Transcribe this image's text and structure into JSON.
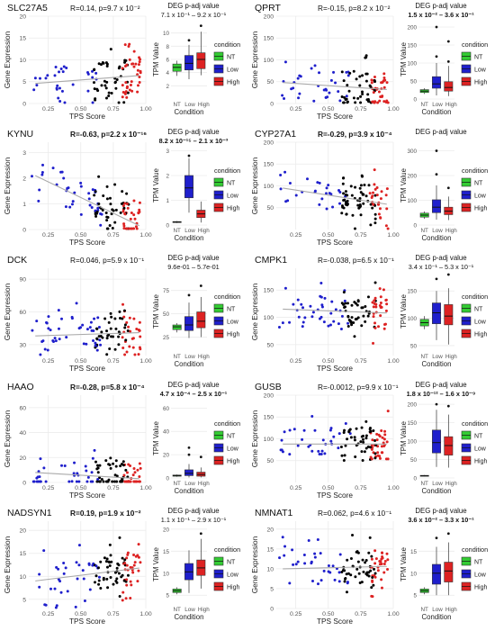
{
  "labels": {
    "scatter_xlabel": "TPS Score",
    "scatter_ylabel": "Gene Expression",
    "box_ylabel": "TPM Value",
    "box_xlabel": "Condition",
    "box_title": "DEG p-adj value",
    "legend_title": "condition"
  },
  "conditions": [
    {
      "name": "NT",
      "color": "#33cc33"
    },
    {
      "name": "Low",
      "color": "#1f1fcc"
    },
    {
      "name": "High",
      "color": "#dd2222"
    }
  ],
  "box_xticks": [
    "NT",
    "Low",
    "High"
  ],
  "scatter_xticks": [
    0.25,
    0.5,
    0.75,
    1.0
  ],
  "scatter_xtick_labels": [
    "0.25",
    "0.50",
    "0.75",
    "1.00"
  ],
  "colors": {
    "mid_points": "#000000",
    "trend": "#aaaaaa",
    "grid": "#ebebeb"
  },
  "chart_data": [
    {
      "gene": "SLC27A5",
      "stats": "R=0.14, p=9.7 x 10⁻²",
      "stats_bold": false,
      "padj": "7.1 x 10⁻¹ – 9.2 x 10⁻¹",
      "padj_bold": false,
      "scatter": {
        "type": "scatter",
        "xlim": [
          0.1,
          1.0
        ],
        "ylim": [
          0,
          20
        ],
        "yticks": [
          0,
          5,
          10,
          15,
          20
        ],
        "trend": [
          4.6,
          6.4
        ]
      },
      "box": {
        "type": "box",
        "ylim": [
          0,
          12
        ],
        "yticks": [
          2,
          4,
          6,
          8,
          10
        ],
        "groups": [
          {
            "name": "NT",
            "q1": 4.2,
            "median": 4.8,
            "q3": 5.3,
            "low": 3.5,
            "high": 5.8
          },
          {
            "name": "Low",
            "q1": 4.4,
            "median": 5.4,
            "q3": 6.6,
            "low": 3.0,
            "high": 8.2,
            "outliers": [
              8.9
            ]
          },
          {
            "name": "High",
            "q1": 4.6,
            "median": 6.0,
            "q3": 7.0,
            "low": 3.6,
            "high": 10.2,
            "outliers": [
              11.1
            ]
          }
        ]
      }
    },
    {
      "gene": "QPRT",
      "stats": "R=-0.15, p=8.2 x 10⁻²",
      "stats_bold": false,
      "padj": "1.5 x 10⁻² – 3.6 x 10⁻¹",
      "padj_bold": true,
      "scatter": {
        "type": "scatter",
        "xlim": [
          0.1,
          1.0
        ],
        "ylim": [
          0,
          200
        ],
        "yticks": [
          0,
          50,
          100,
          150,
          200
        ],
        "trend": [
          48,
          32
        ]
      },
      "box": {
        "type": "box",
        "ylim": [
          0,
          220
        ],
        "yticks": [
          0,
          50,
          100,
          150,
          200
        ],
        "groups": [
          {
            "name": "NT",
            "q1": 18,
            "median": 22,
            "q3": 26,
            "low": 14,
            "high": 30
          },
          {
            "name": "Low",
            "q1": 30,
            "median": 42,
            "q3": 62,
            "low": 10,
            "high": 100,
            "outliers": [
              118,
              200
            ]
          },
          {
            "name": "High",
            "q1": 22,
            "median": 32,
            "q3": 48,
            "low": 8,
            "high": 92,
            "outliers": [
              104,
              160
            ]
          }
        ]
      }
    },
    {
      "gene": "KYNU",
      "stats": "R=-0.63, p=2.2 x 10⁻¹⁶",
      "stats_bold": true,
      "padj": "8.2 x 10⁻¹⁵ – 2.1 x 10⁻³",
      "padj_bold": true,
      "scatter": {
        "type": "scatter",
        "xlim": [
          0.1,
          1.0
        ],
        "ylim": [
          0,
          3.4
        ],
        "yticks": [
          0,
          1,
          2,
          3
        ],
        "trend": [
          2.1,
          0.15
        ]
      },
      "box": {
        "type": "box",
        "ylim": [
          0,
          3.2
        ],
        "yticks": [
          0,
          1,
          2,
          3
        ],
        "groups": [
          {
            "name": "NT",
            "q1": 0.1,
            "median": 0.12,
            "q3": 0.14,
            "low": 0.08,
            "high": 0.16
          },
          {
            "name": "Low",
            "q1": 1.1,
            "median": 1.5,
            "q3": 2.0,
            "low": 0.5,
            "high": 2.7,
            "outliers": [
              2.8
            ]
          },
          {
            "name": "High",
            "q1": 0.3,
            "median": 0.45,
            "q3": 0.6,
            "low": 0.1,
            "high": 0.95
          }
        ]
      }
    },
    {
      "gene": "CYP27A1",
      "stats": "R=-0.29, p=3.9 x 10⁻⁴",
      "stats_bold": true,
      "padj": "",
      "padj_bold": false,
      "scatter": {
        "type": "scatter",
        "xlim": [
          0.1,
          1.0
        ],
        "ylim": [
          0,
          200
        ],
        "yticks": [
          50,
          100,
          150,
          200
        ],
        "trend": [
          95,
          58
        ]
      },
      "box": {
        "type": "box",
        "ylim": [
          0,
          320
        ],
        "yticks": [
          0,
          100,
          200,
          300
        ],
        "groups": [
          {
            "name": "NT",
            "q1": 32,
            "median": 40,
            "q3": 48,
            "low": 25,
            "high": 55
          },
          {
            "name": "Low",
            "q1": 50,
            "median": 72,
            "q3": 102,
            "low": 22,
            "high": 160,
            "outliers": [
              205,
              300
            ]
          },
          {
            "name": "High",
            "q1": 42,
            "median": 56,
            "q3": 72,
            "low": 20,
            "high": 115,
            "outliers": [
              150
            ]
          }
        ]
      }
    },
    {
      "gene": "DCK",
      "stats": "R=0.046, p=5.9 x 10⁻¹",
      "stats_bold": false,
      "padj": "9.6e-01 – 5.7e-01",
      "padj_bold": false,
      "scatter": {
        "type": "scatter",
        "xlim": [
          0.1,
          1.0
        ],
        "ylim": [
          20,
          100
        ],
        "yticks": [
          30,
          60,
          90
        ],
        "trend": [
          38,
          41
        ]
      },
      "box": {
        "type": "box",
        "ylim": [
          10,
          95
        ],
        "yticks": [
          25,
          50,
          75
        ],
        "groups": [
          {
            "name": "NT",
            "q1": 33,
            "median": 36,
            "q3": 38,
            "low": 30,
            "high": 40
          },
          {
            "name": "Low",
            "q1": 32,
            "median": 38,
            "q3": 47,
            "low": 24,
            "high": 62,
            "outliers": [
              70
            ]
          },
          {
            "name": "High",
            "q1": 35,
            "median": 42,
            "q3": 52,
            "low": 25,
            "high": 68,
            "outliers": [
              80
            ]
          }
        ]
      }
    },
    {
      "gene": "CMPK1",
      "stats": "R=-0.038, p=6.5 x 10⁻¹",
      "stats_bold": false,
      "padj": "3.4 x 10⁻¹ – 5.3 x 10⁻¹",
      "padj_bold": false,
      "scatter": {
        "type": "scatter",
        "xlim": [
          0.1,
          1.0
        ],
        "ylim": [
          30,
          190
        ],
        "yticks": [
          50,
          100,
          150
        ],
        "trend": [
          115,
          108
        ]
      },
      "box": {
        "type": "box",
        "ylim": [
          40,
          185
        ],
        "yticks": [
          50,
          100,
          150
        ],
        "groups": [
          {
            "name": "NT",
            "q1": 86,
            "median": 92,
            "q3": 98,
            "low": 80,
            "high": 104
          },
          {
            "name": "Low",
            "q1": 90,
            "median": 110,
            "q3": 128,
            "low": 60,
            "high": 150,
            "outliers": [
              172
            ]
          },
          {
            "name": "High",
            "q1": 88,
            "median": 104,
            "q3": 125,
            "low": 52,
            "high": 155,
            "outliers": [
              180
            ]
          }
        ]
      }
    },
    {
      "gene": "HAAO",
      "stats": "R=-0.28, p=5.8 x 10⁻⁴",
      "stats_bold": true,
      "padj": "4.7 x 10⁻⁴ – 2.5 x 10⁻¹",
      "padj_bold": true,
      "scatter": {
        "type": "scatter",
        "xlim": [
          0.1,
          1.0
        ],
        "ylim": [
          0,
          70
        ],
        "yticks": [
          0,
          20,
          40,
          60
        ],
        "trend": [
          8,
          3
        ]
      },
      "box": {
        "type": "box",
        "ylim": [
          0,
          68
        ],
        "yticks": [
          0,
          20,
          40,
          60
        ],
        "groups": [
          {
            "name": "NT",
            "q1": 1.5,
            "median": 2,
            "q3": 2.5,
            "low": 1,
            "high": 3
          },
          {
            "name": "Low",
            "q1": 2,
            "median": 4,
            "q3": 7,
            "low": 0.5,
            "high": 12,
            "outliers": [
              20,
              26
            ]
          },
          {
            "name": "High",
            "q1": 1.5,
            "median": 3,
            "q3": 5,
            "low": 0.5,
            "high": 9,
            "outliers": [
              18
            ]
          }
        ]
      }
    },
    {
      "gene": "GUSB",
      "stats": "R=-0.0012, p=9.9 x 10⁻¹",
      "stats_bold": false,
      "padj": "1.8 x 10⁻¹² – 1.6 x 10⁻⁹",
      "padj_bold": true,
      "scatter": {
        "type": "scatter",
        "xlim": [
          0.1,
          1.0
        ],
        "ylim": [
          0,
          200
        ],
        "yticks": [
          50,
          100,
          150,
          200
        ],
        "trend": [
          88,
          88
        ]
      },
      "box": {
        "type": "box",
        "ylim": [
          0,
          215
        ],
        "yticks": [
          0,
          50,
          100,
          150,
          200
        ],
        "groups": [
          {
            "name": "NT",
            "q1": 5,
            "median": 6,
            "q3": 7,
            "low": 4,
            "high": 8
          },
          {
            "name": "Low",
            "q1": 68,
            "median": 96,
            "q3": 130,
            "low": 30,
            "high": 185,
            "outliers": [
              200
            ]
          },
          {
            "name": "High",
            "q1": 62,
            "median": 88,
            "q3": 112,
            "low": 28,
            "high": 172,
            "outliers": [
              195
            ]
          }
        ]
      }
    },
    {
      "gene": "NADSYN1",
      "stats": "R=0.19, p=1.9 x 10⁻²",
      "stats_bold": true,
      "padj": "1.1 x 10⁻¹ – 2.9 x 10⁻¹",
      "padj_bold": false,
      "scatter": {
        "type": "scatter",
        "xlim": [
          0.1,
          1.0
        ],
        "ylim": [
          3,
          22
        ],
        "yticks": [
          5,
          10,
          15,
          20
        ],
        "trend": [
          9.0,
          11.8
        ]
      },
      "box": {
        "type": "box",
        "ylim": [
          3,
          21
        ],
        "yticks": [
          5,
          10,
          15,
          20
        ],
        "groups": [
          {
            "name": "NT",
            "q1": 5.6,
            "median": 6.0,
            "q3": 6.4,
            "low": 5.2,
            "high": 6.8
          },
          {
            "name": "Low",
            "q1": 8.5,
            "median": 10.3,
            "q3": 12.2,
            "low": 5.5,
            "high": 15.2
          },
          {
            "name": "High",
            "q1": 9.5,
            "median": 11.2,
            "q3": 13.0,
            "low": 6.5,
            "high": 17.8,
            "outliers": [
              19
            ]
          }
        ]
      }
    },
    {
      "gene": "NMNAT1",
      "stats": "R=0.062, p=4.6 x 10⁻¹",
      "stats_bold": false,
      "padj": "3.6 x 10⁻² – 3.3 x 10⁻¹",
      "padj_bold": true,
      "scatter": {
        "type": "scatter",
        "xlim": [
          0.1,
          1.0
        ],
        "ylim": [
          0,
          22
        ],
        "yticks": [
          0,
          5,
          10,
          15,
          20
        ],
        "trend": [
          10.0,
          10.6
        ]
      },
      "box": {
        "type": "box",
        "ylim": [
          3,
          21
        ],
        "yticks": [
          5,
          10,
          15
        ],
        "groups": [
          {
            "name": "NT",
            "q1": 5.6,
            "median": 6.0,
            "q3": 6.4,
            "low": 5.2,
            "high": 6.8
          },
          {
            "name": "Low",
            "q1": 7.5,
            "median": 10.0,
            "q3": 12.0,
            "low": 5.0,
            "high": 16.0,
            "outliers": [
              18
            ]
          },
          {
            "name": "High",
            "q1": 8.0,
            "median": 10.5,
            "q3": 12.5,
            "low": 5.0,
            "high": 17.0,
            "outliers": [
              19
            ]
          }
        ]
      }
    }
  ]
}
